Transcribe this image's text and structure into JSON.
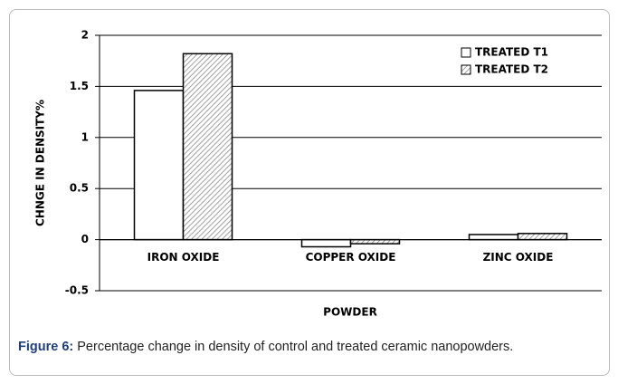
{
  "chart_data": {
    "type": "bar",
    "categories": [
      "IRON OXIDE",
      "COPPER OXIDE",
      "ZINC OXIDE"
    ],
    "series": [
      {
        "name": "TREATED T1",
        "color": "#ffffff",
        "values": [
          1.46,
          -0.07,
          0.05
        ]
      },
      {
        "name": "TREATED T2",
        "color": "#9a9a9a",
        "pattern": "hatch",
        "values": [
          1.82,
          -0.04,
          0.06
        ]
      }
    ],
    "ylim": [
      -0.5,
      2
    ],
    "yticks": [
      -0.5,
      0,
      0.5,
      1,
      1.5,
      2
    ],
    "grid": true,
    "x_label": "POWDER",
    "y_label": "CHNGE IN DENSITY%",
    "legend": "upper right",
    "caption_label": "Figure 6:",
    "caption": "Percentage change in density of control and treated ceramic nanopowders."
  }
}
